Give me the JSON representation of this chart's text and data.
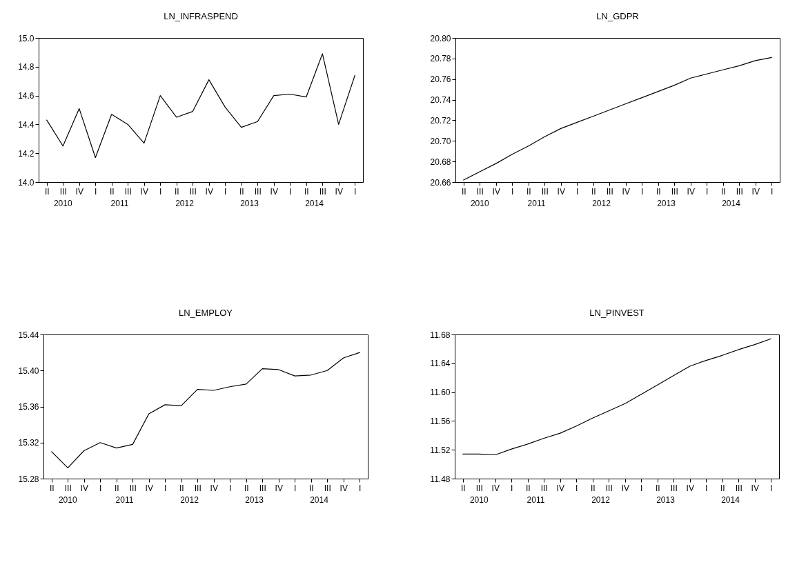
{
  "chart_data": [
    {
      "type": "line",
      "title": "LN_INFRASPEND",
      "color": "#000000",
      "categories": [
        "II",
        "III",
        "IV",
        "I",
        "II",
        "III",
        "IV",
        "I",
        "II",
        "III",
        "IV",
        "I",
        "II",
        "III",
        "IV",
        "I",
        "II",
        "III",
        "IV",
        "I"
      ],
      "values": [
        14.43,
        14.25,
        14.51,
        14.17,
        14.47,
        14.4,
        14.27,
        14.6,
        14.45,
        14.49,
        14.71,
        14.52,
        14.38,
        14.42,
        14.6,
        14.61,
        14.59,
        14.89,
        14.4,
        14.74
      ],
      "ylim": [
        14.0,
        15.0
      ],
      "yticks": [
        {
          "value": 14,
          "label": "14.0"
        },
        14.2,
        14.4,
        14.6,
        14.8,
        {
          "value": 15,
          "label": "15.0"
        }
      ],
      "annotations": [
        "2010",
        "2011",
        "2012",
        "2013",
        "2014"
      ]
    },
    {
      "type": "line",
      "title": "LN_GDPR",
      "color": "#000000",
      "categories": [
        "II",
        "III",
        "IV",
        "I",
        "II",
        "III",
        "IV",
        "I",
        "II",
        "III",
        "IV",
        "I",
        "II",
        "III",
        "IV",
        "I",
        "II",
        "III",
        "IV",
        "I"
      ],
      "values": [
        20.662,
        20.67,
        20.678,
        20.687,
        20.695,
        20.704,
        20.712,
        20.718,
        20.724,
        20.73,
        20.736,
        20.742,
        20.748,
        20.754,
        20.761,
        20.765,
        20.769,
        20.773,
        20.778,
        20.781
      ],
      "ylim": [
        20.66,
        20.8
      ],
      "yticks": [
        20.66,
        20.68,
        {
          "value": 20.7,
          "label": "20.70"
        },
        20.72,
        20.74,
        20.76,
        20.78,
        {
          "value": 20.8,
          "label": "20.80"
        }
      ],
      "annotations": [
        "2010",
        "2011",
        "2012",
        "2013",
        "2014"
      ]
    },
    {
      "type": "line",
      "title": "LN_EMPLOY",
      "color": "#000000",
      "categories": [
        "II",
        "III",
        "IV",
        "I",
        "II",
        "III",
        "IV",
        "I",
        "II",
        "III",
        "IV",
        "I",
        "II",
        "III",
        "IV",
        "I",
        "II",
        "III",
        "IV",
        "I"
      ],
      "values": [
        15.31,
        15.292,
        15.311,
        15.32,
        15.314,
        15.318,
        15.352,
        15.362,
        15.361,
        15.379,
        15.378,
        15.382,
        15.385,
        15.402,
        15.401,
        15.394,
        15.395,
        15.4,
        15.414,
        15.42
      ],
      "ylim": [
        15.28,
        15.44
      ],
      "yticks": [
        15.28,
        15.32,
        15.36,
        {
          "value": 15.4,
          "label": "15.40"
        },
        15.44
      ],
      "annotations": [
        "2010",
        "2011",
        "2012",
        "2013",
        "2014"
      ]
    },
    {
      "type": "line",
      "title": "LN_PINVEST",
      "color": "#000000",
      "categories": [
        "II",
        "III",
        "IV",
        "I",
        "II",
        "III",
        "IV",
        "I",
        "II",
        "III",
        "IV",
        "I",
        "II",
        "III",
        "IV",
        "I",
        "II",
        "III",
        "IV",
        "I"
      ],
      "values": [
        11.514,
        11.514,
        11.513,
        11.521,
        11.528,
        11.536,
        11.543,
        11.553,
        11.564,
        11.574,
        11.584,
        11.597,
        11.61,
        11.623,
        11.636,
        11.644,
        11.651,
        11.659,
        11.666,
        11.674
      ],
      "ylim": [
        11.48,
        11.68
      ],
      "yticks": [
        11.48,
        11.52,
        11.56,
        {
          "value": 11.6,
          "label": "11.60"
        },
        11.64,
        11.68
      ],
      "annotations": [
        "2010",
        "2011",
        "2012",
        "2013",
        "2014"
      ]
    }
  ]
}
